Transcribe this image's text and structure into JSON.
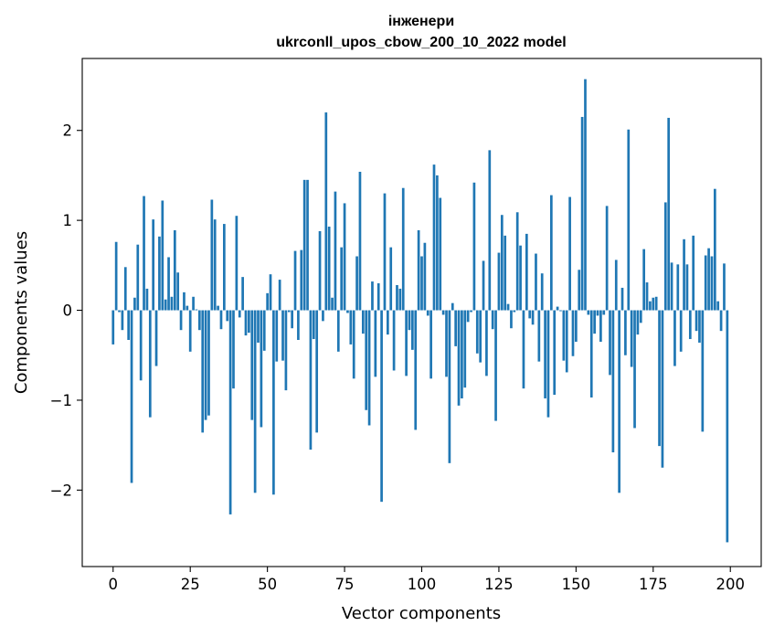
{
  "chart_data": {
    "type": "bar",
    "title": "інженери",
    "subtitle": "ukrconll_upos_cbow_200_10_2022 model",
    "xlabel": "Vector components",
    "ylabel": "Components values",
    "xlim": [
      -10,
      210
    ],
    "ylim": [
      -2.85,
      2.8
    ],
    "xticks": [
      0,
      25,
      50,
      75,
      100,
      125,
      150,
      175,
      200
    ],
    "xtick_labels": [
      "0",
      "25",
      "50",
      "75",
      "100",
      "125",
      "150",
      "175",
      "200"
    ],
    "yticks": [
      -2,
      -1,
      0,
      1,
      2
    ],
    "ytick_labels": [
      "−2",
      "−1",
      "0",
      "1",
      "2"
    ],
    "bar_color": "#1f77b4",
    "grid": false,
    "x": [
      0,
      1,
      2,
      3,
      4,
      5,
      6,
      7,
      8,
      9,
      10,
      11,
      12,
      13,
      14,
      15,
      16,
      17,
      18,
      19,
      20,
      21,
      22,
      23,
      24,
      25,
      26,
      27,
      28,
      29,
      30,
      31,
      32,
      33,
      34,
      35,
      36,
      37,
      38,
      39,
      40,
      41,
      42,
      43,
      44,
      45,
      46,
      47,
      48,
      49,
      50,
      51,
      52,
      53,
      54,
      55,
      56,
      57,
      58,
      59,
      60,
      61,
      62,
      63,
      64,
      65,
      66,
      67,
      68,
      69,
      70,
      71,
      72,
      73,
      74,
      75,
      76,
      77,
      78,
      79,
      80,
      81,
      82,
      83,
      84,
      85,
      86,
      87,
      88,
      89,
      90,
      91,
      92,
      93,
      94,
      95,
      96,
      97,
      98,
      99,
      100,
      101,
      102,
      103,
      104,
      105,
      106,
      107,
      108,
      109,
      110,
      111,
      112,
      113,
      114,
      115,
      116,
      117,
      118,
      119,
      120,
      121,
      122,
      123,
      124,
      125,
      126,
      127,
      128,
      129,
      130,
      131,
      132,
      133,
      134,
      135,
      136,
      137,
      138,
      139,
      140,
      141,
      142,
      143,
      144,
      145,
      146,
      147,
      148,
      149,
      150,
      151,
      152,
      153,
      154,
      155,
      156,
      157,
      158,
      159,
      160,
      161,
      162,
      163,
      164,
      165,
      166,
      167,
      168,
      169,
      170,
      171,
      172,
      173,
      174,
      175,
      176,
      177,
      178,
      179,
      180,
      181,
      182,
      183,
      184,
      185,
      186,
      187,
      188,
      189,
      190,
      191,
      192,
      193,
      194,
      195,
      196,
      197,
      198,
      199
    ],
    "values": [
      -0.38,
      0.76,
      -0.02,
      -0.22,
      0.48,
      -0.33,
      -1.92,
      0.14,
      0.73,
      -0.78,
      1.27,
      0.24,
      -1.19,
      1.01,
      -0.62,
      0.82,
      1.22,
      0.12,
      0.59,
      0.15,
      0.89,
      0.42,
      -0.22,
      0.2,
      0.05,
      -0.46,
      0.15,
      0.01,
      -0.22,
      -1.36,
      -1.22,
      -1.17,
      1.23,
      1.01,
      0.05,
      -0.21,
      0.96,
      -0.12,
      -2.27,
      -0.87,
      1.05,
      -0.08,
      0.37,
      -0.28,
      -0.25,
      -1.22,
      -2.03,
      -0.36,
      -1.3,
      -0.45,
      0.19,
      0.4,
      -2.05,
      -0.57,
      0.34,
      -0.56,
      -0.89,
      -0.02,
      -0.2,
      0.66,
      -0.33,
      0.67,
      1.45,
      1.45,
      -1.55,
      -0.32,
      -1.36,
      0.88,
      -0.12,
      2.2,
      0.93,
      0.14,
      1.32,
      -0.46,
      0.7,
      1.19,
      -0.03,
      -0.38,
      -0.76,
      0.6,
      1.54,
      -0.26,
      -1.11,
      -1.28,
      0.32,
      -0.74,
      0.3,
      -2.13,
      1.3,
      -0.27,
      0.7,
      -0.67,
      0.28,
      0.24,
      1.36,
      -0.73,
      -0.22,
      -0.44,
      -1.33,
      0.89,
      0.6,
      0.75,
      -0.06,
      -0.76,
      1.62,
      1.5,
      1.25,
      -0.05,
      -0.74,
      -1.7,
      0.08,
      -0.4,
      -1.06,
      -0.98,
      -0.86,
      -0.13,
      -0.02,
      1.42,
      -0.48,
      -0.58,
      0.55,
      -0.73,
      1.78,
      -0.21,
      -1.23,
      0.64,
      1.06,
      0.83,
      0.07,
      -0.2,
      -0.02,
      1.09,
      0.72,
      -0.87,
      0.85,
      -0.09,
      -0.16,
      0.63,
      -0.57,
      0.41,
      -0.98,
      -1.19,
      1.28,
      -0.94,
      0.04,
      -0.01,
      -0.56,
      -0.69,
      1.26,
      -0.51,
      -0.35,
      0.45,
      2.15,
      2.57,
      -0.05,
      -0.97,
      -0.26,
      -0.06,
      -0.35,
      -0.05,
      1.16,
      -0.72,
      -1.58,
      0.56,
      -2.03,
      0.25,
      -0.5,
      2.01,
      -0.63,
      -1.31,
      -0.27,
      -0.14,
      0.68,
      0.31,
      0.1,
      0.14,
      0.15,
      -1.51,
      -1.75,
      1.2,
      2.14,
      0.53,
      -0.62,
      0.51,
      -0.46,
      0.79,
      0.51,
      -0.32,
      0.83,
      -0.23,
      -0.36,
      -1.35,
      0.61,
      0.69,
      0.6,
      1.35,
      0.1,
      -0.23,
      0.52,
      -2.58
    ]
  }
}
